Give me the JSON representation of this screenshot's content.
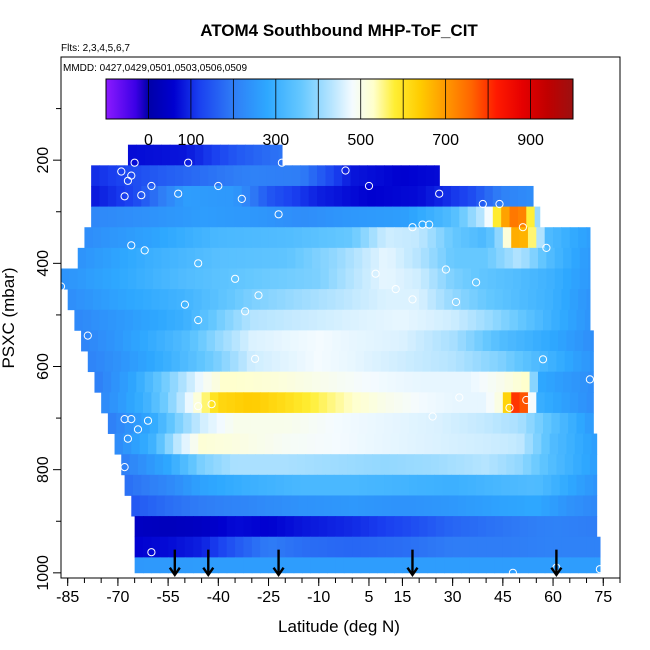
{
  "chart_data": {
    "type": "heatmap",
    "title": "ATOM4 Southbound MHP-ToF_CIT",
    "subtitle_flights": "Flts: 2,3,4,5,6,7",
    "subtitle_dates": "MMDD: 0427,0429,0501,0503,0506,0509",
    "xlabel": "Latitude (deg N)",
    "ylabel": "PSXC (mbar)",
    "xlim": [
      -87,
      80
    ],
    "ylim": [
      1010,
      0
    ],
    "y_axis_reversed": true,
    "x_ticks": [
      -85,
      -70,
      -55,
      -40,
      -25,
      -10,
      5,
      15,
      30,
      45,
      60,
      75
    ],
    "x_tick_labels": [
      "-85",
      "-70",
      "-55",
      "-40",
      "-25",
      "-10",
      "5",
      "15",
      "30",
      "45",
      "60",
      "75"
    ],
    "y_ticks": [
      200,
      400,
      600,
      800,
      1000
    ],
    "y_tick_labels": [
      "200",
      "400",
      "600",
      "800",
      "1000"
    ],
    "colorbar": {
      "min": -100,
      "max": 1000,
      "tick_values": [
        0,
        100,
        300,
        500,
        700,
        900
      ],
      "tick_labels": [
        "0",
        "100",
        "300",
        "500",
        "700",
        "900"
      ],
      "stops": [
        [
          -100,
          "#8c1aff"
        ],
        [
          -30,
          "#3b00e6"
        ],
        [
          0,
          "#0000a8"
        ],
        [
          60,
          "#0000d0"
        ],
        [
          120,
          "#1a40f0"
        ],
        [
          200,
          "#2f7df6"
        ],
        [
          280,
          "#2ea8ff"
        ],
        [
          360,
          "#66c8ff"
        ],
        [
          430,
          "#b5e4ff"
        ],
        [
          480,
          "#f4fbff"
        ],
        [
          530,
          "#ffffcc"
        ],
        [
          580,
          "#ffee33"
        ],
        [
          640,
          "#ffcc00"
        ],
        [
          700,
          "#ff9900"
        ],
        [
          760,
          "#ff6600"
        ],
        [
          820,
          "#ff1a00"
        ],
        [
          880,
          "#e60000"
        ],
        [
          940,
          "#c00000"
        ],
        [
          1000,
          "#9c1010"
        ]
      ]
    },
    "pressure_bins": [
      {
        "p_top": 170,
        "p_bot": 210,
        "lat_min": -67,
        "lat_max": -21,
        "lat": [
          -67,
          -50,
          -35,
          -21
        ],
        "val": [
          70,
          80,
          150,
          190
        ]
      },
      {
        "p_top": 210,
        "p_bot": 250,
        "lat_min": -78,
        "lat_max": 26,
        "lat": [
          -78,
          -60,
          -45,
          -30,
          -15,
          0,
          15,
          26
        ],
        "val": [
          100,
          150,
          180,
          210,
          200,
          80,
          60,
          70
        ]
      },
      {
        "p_top": 250,
        "p_bot": 290,
        "lat_min": -78,
        "lat_max": 54,
        "lat": [
          -78,
          -65,
          -50,
          -35,
          -25,
          -10,
          5,
          20,
          35,
          45,
          54
        ],
        "val": [
          80,
          130,
          260,
          250,
          150,
          90,
          60,
          70,
          130,
          210,
          230
        ]
      },
      {
        "p_top": 290,
        "p_bot": 330,
        "lat_min": -78,
        "lat_max": 56,
        "lat": [
          -78,
          -60,
          -45,
          -30,
          -15,
          0,
          15,
          30,
          40,
          46,
          50,
          53,
          56
        ],
        "val": [
          220,
          240,
          260,
          250,
          230,
          250,
          260,
          330,
          450,
          700,
          770,
          600,
          340
        ]
      },
      {
        "p_top": 330,
        "p_bot": 370,
        "lat_min": -80,
        "lat_max": 71,
        "lat": [
          -80,
          -60,
          -40,
          -20,
          0,
          10,
          20,
          30,
          40,
          45,
          48,
          50,
          53,
          58,
          71
        ],
        "val": [
          230,
          270,
          320,
          330,
          360,
          450,
          440,
          360,
          320,
          420,
          650,
          720,
          600,
          330,
          260
        ]
      },
      {
        "p_top": 370,
        "p_bot": 410,
        "lat_min": -82,
        "lat_max": 71,
        "lat": [
          -82,
          -60,
          -40,
          -20,
          -5,
          10,
          20,
          30,
          40,
          50,
          60,
          71
        ],
        "val": [
          240,
          300,
          340,
          350,
          400,
          470,
          430,
          360,
          360,
          430,
          320,
          250
        ]
      },
      {
        "p_top": 410,
        "p_bot": 450,
        "lat_min": -87,
        "lat_max": 71,
        "lat": [
          -87,
          -70,
          -50,
          -30,
          -10,
          0,
          10,
          20,
          30,
          40,
          50,
          60,
          71
        ],
        "val": [
          240,
          280,
          330,
          360,
          380,
          430,
          470,
          450,
          380,
          350,
          330,
          300,
          250
        ]
      },
      {
        "p_top": 450,
        "p_bot": 490,
        "lat_min": -85,
        "lat_max": 71,
        "lat": [
          -85,
          -70,
          -50,
          -30,
          -10,
          0,
          10,
          20,
          30,
          40,
          50,
          60,
          71
        ],
        "val": [
          230,
          270,
          310,
          380,
          420,
          440,
          460,
          460,
          400,
          360,
          330,
          300,
          240
        ]
      },
      {
        "p_top": 490,
        "p_bot": 530,
        "lat_min": -83,
        "lat_max": 71,
        "lat": [
          -83,
          -70,
          -50,
          -40,
          -30,
          -10,
          0,
          15,
          30,
          40,
          50,
          60,
          71
        ],
        "val": [
          220,
          250,
          300,
          370,
          430,
          450,
          460,
          470,
          450,
          410,
          360,
          300,
          240
        ]
      },
      {
        "p_top": 530,
        "p_bot": 570,
        "lat_min": -81,
        "lat_max": 72,
        "lat": [
          -81,
          -70,
          -50,
          -40,
          -30,
          -10,
          0,
          15,
          30,
          45,
          60,
          72
        ],
        "val": [
          210,
          250,
          330,
          400,
          460,
          480,
          470,
          460,
          420,
          330,
          280,
          230
        ]
      },
      {
        "p_top": 570,
        "p_bot": 610,
        "lat_min": -79,
        "lat_max": 72,
        "lat": [
          -79,
          -70,
          -55,
          -40,
          -30,
          -10,
          0,
          15,
          30,
          45,
          60,
          72
        ],
        "val": [
          210,
          240,
          300,
          380,
          450,
          480,
          470,
          450,
          430,
          380,
          300,
          240
        ]
      },
      {
        "p_top": 610,
        "p_bot": 650,
        "lat_min": -77,
        "lat_max": 72,
        "lat": [
          -77,
          -65,
          -55,
          -45,
          -38,
          -25,
          -10,
          5,
          20,
          35,
          45,
          52,
          56,
          72
        ],
        "val": [
          200,
          280,
          380,
          480,
          530,
          520,
          500,
          480,
          470,
          470,
          500,
          530,
          280,
          230
        ]
      },
      {
        "p_top": 650,
        "p_bot": 690,
        "lat_min": -75,
        "lat_max": 72,
        "lat": [
          -75,
          -62,
          -55,
          -50,
          -45,
          -40,
          -30,
          -20,
          -10,
          0,
          10,
          20,
          30,
          40,
          45,
          48,
          50,
          52,
          55,
          72
        ],
        "val": [
          220,
          300,
          380,
          450,
          540,
          620,
          640,
          610,
          570,
          530,
          500,
          480,
          470,
          470,
          520,
          780,
          830,
          740,
          300,
          230
        ]
      },
      {
        "p_top": 690,
        "p_bot": 730,
        "lat_min": -73,
        "lat_max": 72,
        "lat": [
          -73,
          -60,
          -52,
          -45,
          -35,
          -20,
          -5,
          10,
          25,
          40,
          50,
          60,
          72
        ],
        "val": [
          200,
          280,
          380,
          450,
          500,
          500,
          480,
          470,
          460,
          440,
          420,
          340,
          250
        ]
      },
      {
        "p_top": 730,
        "p_bot": 770,
        "lat_min": -71,
        "lat_max": 73,
        "lat": [
          -71,
          -60,
          -52,
          -45,
          -35,
          -20,
          -5,
          10,
          25,
          40,
          50,
          60,
          73
        ],
        "val": [
          220,
          300,
          440,
          520,
          510,
          490,
          480,
          470,
          460,
          450,
          440,
          330,
          260
        ]
      },
      {
        "p_top": 770,
        "p_bot": 810,
        "lat_min": -69,
        "lat_max": 73,
        "lat": [
          -69,
          -55,
          -45,
          -35,
          -20,
          -5,
          10,
          25,
          40,
          50,
          60,
          73
        ],
        "val": [
          200,
          280,
          380,
          420,
          420,
          410,
          400,
          410,
          430,
          400,
          330,
          260
        ]
      },
      {
        "p_top": 810,
        "p_bot": 850,
        "lat_min": -68,
        "lat_max": 73,
        "lat": [
          -68,
          -55,
          -45,
          -30,
          -15,
          0,
          15,
          30,
          45,
          55,
          65,
          73
        ],
        "val": [
          180,
          220,
          270,
          300,
          320,
          320,
          310,
          300,
          320,
          330,
          280,
          240
        ]
      },
      {
        "p_top": 850,
        "p_bot": 890,
        "lat_min": -66,
        "lat_max": 73,
        "lat": [
          -66,
          -55,
          -45,
          -30,
          -15,
          0,
          15,
          30,
          45,
          55,
          65,
          73
        ],
        "val": [
          150,
          180,
          200,
          220,
          240,
          250,
          240,
          250,
          270,
          280,
          240,
          220
        ]
      },
      {
        "p_top": 890,
        "p_bot": 930,
        "lat_min": -65,
        "lat_max": 73,
        "lat": [
          -65,
          -55,
          -45,
          -35,
          -25,
          -15,
          0,
          15,
          30,
          45,
          60,
          73
        ],
        "val": [
          40,
          30,
          40,
          70,
          60,
          80,
          100,
          130,
          170,
          190,
          210,
          200
        ]
      },
      {
        "p_top": 930,
        "p_bot": 970,
        "lat_min": -65,
        "lat_max": 74,
        "lat": [
          -65,
          -55,
          -45,
          -35,
          -25,
          -15,
          0,
          15,
          30,
          45,
          60,
          74
        ],
        "val": [
          60,
          70,
          90,
          150,
          200,
          180,
          170,
          180,
          200,
          200,
          210,
          210
        ]
      },
      {
        "p_top": 970,
        "p_bot": 1000,
        "lat_min": -65,
        "lat_max": 74,
        "lat": [
          -65,
          -40,
          -10,
          20,
          50,
          74
        ],
        "val": [
          250,
          260,
          260,
          260,
          260,
          260
        ]
      }
    ],
    "profile_arrows_lat": [
      -53,
      -43,
      -22,
      18,
      61
    ],
    "sample_points": [
      [
        -65,
        205
      ],
      [
        -49,
        205
      ],
      [
        -21,
        205
      ],
      [
        -82,
        240
      ],
      [
        -66,
        230
      ],
      [
        -67,
        240
      ],
      [
        -69,
        222
      ],
      [
        -60,
        250
      ],
      [
        -40,
        250
      ],
      [
        -2,
        220
      ],
      [
        5,
        250
      ],
      [
        -68,
        270
      ],
      [
        -63,
        268
      ],
      [
        -52,
        265
      ],
      [
        -33,
        275
      ],
      [
        -22,
        305
      ],
      [
        26,
        265
      ],
      [
        39,
        285
      ],
      [
        44,
        285
      ],
      [
        -66,
        365
      ],
      [
        -62,
        375
      ],
      [
        -46,
        400
      ],
      [
        18,
        330
      ],
      [
        21,
        325
      ],
      [
        23,
        325
      ],
      [
        51,
        330
      ],
      [
        -35,
        430
      ],
      [
        -28,
        462
      ],
      [
        7,
        420
      ],
      [
        13,
        450
      ],
      [
        28,
        412
      ],
      [
        37,
        437
      ],
      [
        58,
        370
      ],
      [
        -87,
        445
      ],
      [
        -50,
        480
      ],
      [
        -46,
        510
      ],
      [
        -32,
        493
      ],
      [
        18,
        470
      ],
      [
        31,
        475
      ],
      [
        -79,
        540
      ],
      [
        -29,
        585
      ],
      [
        57,
        586
      ],
      [
        71,
        625
      ],
      [
        -68,
        702
      ],
      [
        -66,
        702
      ],
      [
        -64,
        722
      ],
      [
        -61,
        705
      ],
      [
        -67,
        740
      ],
      [
        -68,
        795
      ],
      [
        -46,
        677
      ],
      [
        -42,
        673
      ],
      [
        24,
        697
      ],
      [
        32,
        660
      ],
      [
        47,
        680
      ],
      [
        52,
        665
      ],
      [
        -69,
        968
      ],
      [
        -68,
        958
      ],
      [
        -67,
        955
      ],
      [
        -60,
        960
      ],
      [
        48,
        1000
      ],
      [
        61,
        990
      ],
      [
        74,
        993
      ]
    ]
  }
}
